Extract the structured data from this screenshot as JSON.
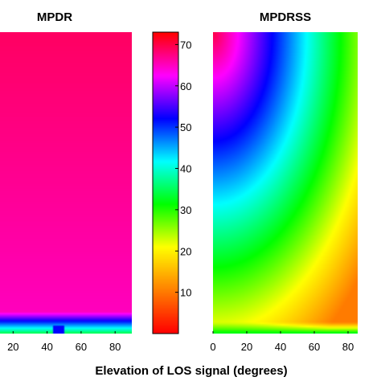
{
  "chart_data": [
    {
      "type": "heatmap",
      "title": "MPDR",
      "x": {
        "ticks": [
          20,
          40,
          60,
          80
        ],
        "range": [
          0,
          90
        ]
      },
      "field": {
        "description_of_gradient": "nearly uniform high value, dropping sharply to low values in a thin band near the bottom edge, with a dark blue spot near x=40 at the bottom",
        "base_value": 69,
        "bottom_value": 35,
        "hotspot": {
          "x": 40,
          "value": 52
        }
      }
    },
    {
      "type": "heatmap",
      "title": "MPDRSS",
      "x": {
        "ticks": [
          0,
          20,
          40,
          60,
          80
        ],
        "range": [
          0,
          90
        ]
      },
      "field": {
        "description_of_gradient": "high values in the top-left corner decreasing toward the bottom-right corner, with a thin low-value band at the bottom edge",
        "top_left_value": 70,
        "bottom_right_value": 10,
        "bottom_value": 32
      }
    },
    {
      "type": "colorbar",
      "range": [
        0,
        73
      ],
      "ticks": [
        10,
        20,
        30,
        40,
        50,
        60,
        70
      ],
      "colormap": [
        "#ff0000",
        "#ff8000",
        "#ffff00",
        "#00ff00",
        "#00ffff",
        "#0000ff",
        "#ff00ff",
        "#ff0000"
      ]
    }
  ],
  "xlabel": "Elevation of LOS signal (degrees)"
}
